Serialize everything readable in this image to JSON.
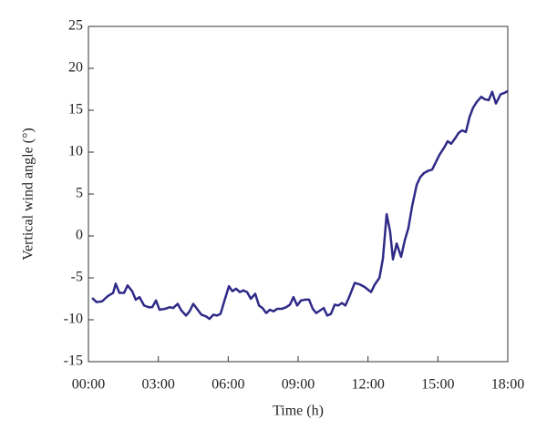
{
  "chart_data": {
    "type": "line",
    "xlabel": "Time (h)",
    "ylabel": "Vertical wind angle (°)",
    "xlim": [
      0,
      18
    ],
    "ylim": [
      -15,
      25
    ],
    "xticks": [
      {
        "value": 0,
        "label": "00:00"
      },
      {
        "value": 3,
        "label": "03:00"
      },
      {
        "value": 6,
        "label": "06:00"
      },
      {
        "value": 9,
        "label": "09:00"
      },
      {
        "value": 12,
        "label": "12:00"
      },
      {
        "value": 15,
        "label": "15:00"
      },
      {
        "value": 18,
        "label": "18:00"
      }
    ],
    "yticks": [
      -15,
      -10,
      -5,
      0,
      5,
      10,
      15,
      20,
      25
    ],
    "x": [
      0.16,
      0.35,
      0.59,
      0.82,
      1.06,
      1.17,
      1.33,
      1.53,
      1.68,
      1.88,
      2.03,
      2.19,
      2.39,
      2.58,
      2.74,
      2.9,
      3.05,
      3.29,
      3.49,
      3.64,
      3.83,
      3.99,
      4.19,
      4.34,
      4.5,
      4.66,
      4.85,
      5.05,
      5.2,
      5.36,
      5.52,
      5.67,
      5.83,
      6.03,
      6.18,
      6.34,
      6.5,
      6.65,
      6.81,
      6.97,
      7.16,
      7.32,
      7.47,
      7.63,
      7.79,
      7.94,
      8.1,
      8.3,
      8.49,
      8.65,
      8.8,
      8.96,
      9.12,
      9.31,
      9.47,
      9.63,
      9.78,
      9.94,
      10.1,
      10.25,
      10.41,
      10.57,
      10.72,
      10.88,
      11.03,
      11.19,
      11.43,
      11.66,
      11.86,
      12.13,
      12.29,
      12.49,
      12.64,
      12.8,
      12.95,
      13.07,
      13.23,
      13.42,
      13.58,
      13.73,
      13.89,
      14.09,
      14.24,
      14.4,
      14.6,
      14.75,
      14.91,
      15.07,
      15.26,
      15.42,
      15.57,
      15.73,
      15.89,
      16.04,
      16.2,
      16.36,
      16.51,
      16.67,
      16.86,
      17.02,
      17.18,
      17.33,
      17.49,
      17.69,
      17.88,
      18.0
    ],
    "series": [
      {
        "name": "Vertical wind angle",
        "color": "#2f2a87",
        "values": [
          -7.4,
          -7.9,
          -7.8,
          -7.2,
          -6.8,
          -5.7,
          -6.8,
          -6.8,
          -5.9,
          -6.6,
          -7.6,
          -7.3,
          -8.3,
          -8.5,
          -8.5,
          -7.7,
          -8.8,
          -8.7,
          -8.5,
          -8.6,
          -8.1,
          -8.9,
          -9.5,
          -9.0,
          -8.1,
          -8.7,
          -9.4,
          -9.6,
          -9.9,
          -9.4,
          -9.5,
          -9.3,
          -7.8,
          -6.0,
          -6.6,
          -6.3,
          -6.7,
          -6.5,
          -6.7,
          -7.5,
          -6.9,
          -8.3,
          -8.6,
          -9.2,
          -8.8,
          -9.0,
          -8.7,
          -8.7,
          -8.5,
          -8.2,
          -7.3,
          -8.3,
          -7.7,
          -7.6,
          -7.6,
          -8.7,
          -9.2,
          -8.9,
          -8.6,
          -9.5,
          -9.3,
          -8.2,
          -8.3,
          -8.0,
          -8.3,
          -7.3,
          -5.6,
          -5.8,
          -6.1,
          -6.7,
          -5.8,
          -5.0,
          -2.7,
          2.6,
          0.5,
          -2.8,
          -0.9,
          -2.5,
          -0.5,
          0.9,
          3.5,
          6.1,
          7.0,
          7.5,
          7.8,
          7.9,
          8.8,
          9.7,
          10.5,
          11.3,
          11.0,
          11.6,
          12.3,
          12.6,
          12.4,
          14.2,
          15.3,
          16.0,
          16.6,
          16.3,
          16.2,
          17.2,
          15.8,
          16.9,
          17.1,
          17.3
        ]
      }
    ]
  }
}
